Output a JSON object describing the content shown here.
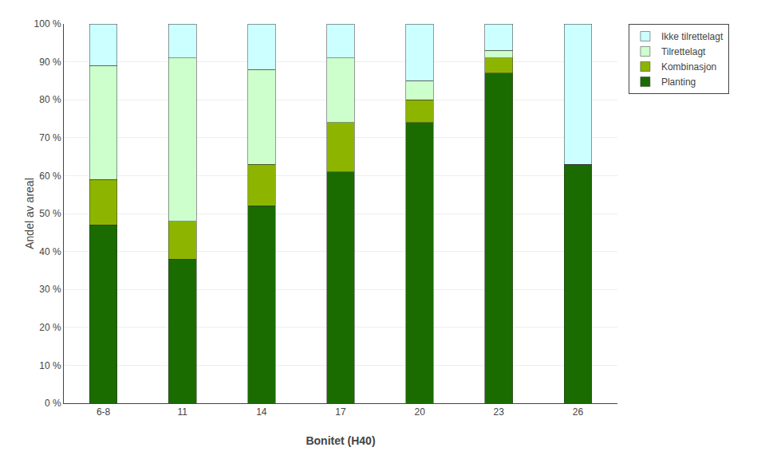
{
  "chart_data": {
    "type": "bar",
    "stacked": true,
    "xlabel": "Bonitet (H40)",
    "ylabel": "Andel av areal",
    "categories": [
      "6-8",
      "11",
      "14",
      "17",
      "20",
      "23",
      "26"
    ],
    "series": [
      {
        "name": "Planting",
        "color": "#1a6b00",
        "values": [
          47,
          38,
          52,
          61,
          74,
          87,
          63
        ]
      },
      {
        "name": "Kombinasjon",
        "color": "#8db500",
        "values": [
          12,
          10,
          11,
          13,
          6,
          4,
          0
        ]
      },
      {
        "name": "Tilrettelagt",
        "color": "#ccffcc",
        "values": [
          30,
          43,
          25,
          17,
          5,
          2,
          0
        ]
      },
      {
        "name": "Ikke tilrettelagt",
        "color": "#ccffff",
        "values": [
          11,
          9,
          12,
          9,
          15,
          7,
          37
        ]
      }
    ],
    "ylim": [
      0,
      100
    ],
    "yticks": [
      {
        "value": 0,
        "label": "0 %"
      },
      {
        "value": 10,
        "label": "10 %"
      },
      {
        "value": 20,
        "label": "20 %"
      },
      {
        "value": 30,
        "label": "30 %"
      },
      {
        "value": 40,
        "label": "40 %"
      },
      {
        "value": 50,
        "label": "50 %"
      },
      {
        "value": 60,
        "label": "60 %"
      },
      {
        "value": 70,
        "label": "70 %"
      },
      {
        "value": 80,
        "label": "80 %"
      },
      {
        "value": 90,
        "label": "90 %"
      },
      {
        "value": 100,
        "label": "100 %"
      }
    ],
    "grid": true,
    "legend": "upper right"
  }
}
